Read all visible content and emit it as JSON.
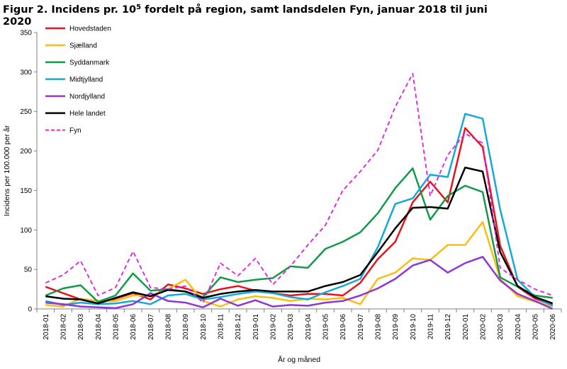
{
  "title": {
    "prefix": "Figur 2. Incidens pr. 10",
    "sup": "5",
    "suffix": " fordelt på region, samt landsdelen Fyn, januar 2018 til juni 2020"
  },
  "chart_data": {
    "type": "line",
    "xlabel": "År og måned",
    "ylabel": "Incidens per 100.000 per år",
    "ylim": [
      0,
      350
    ],
    "yticks": [
      0,
      50,
      100,
      150,
      200,
      250,
      300,
      350
    ],
    "grid": false,
    "legend_position": "top-left",
    "categories": [
      "2018-01",
      "2018-02",
      "2018-03",
      "2018-04",
      "2018-05",
      "2018-06",
      "2018-07",
      "2018-08",
      "2018-09",
      "2018-10",
      "2018-11",
      "2018-12",
      "2019-01",
      "2019-02",
      "2019-03",
      "2019-04",
      "2019-05",
      "2019-06",
      "2019-07",
      "2019-08",
      "2019-09",
      "2019-10",
      "2019-11",
      "2019-12",
      "2020-01",
      "2020-02",
      "2020-03",
      "2020-04",
      "2020-05",
      "2020-06"
    ],
    "series": [
      {
        "name": "Hovedstaden",
        "color": "#e8141b",
        "dash": false,
        "values": [
          28,
          20,
          12,
          7,
          13,
          20,
          12,
          31,
          26,
          19,
          25,
          29,
          23,
          20,
          17,
          19,
          19,
          17,
          33,
          63,
          85,
          135,
          161,
          135,
          229,
          205,
          80,
          28,
          13,
          5
        ]
      },
      {
        "name": "Sjælland",
        "color": "#fbbd13",
        "dash": false,
        "values": [
          5,
          3,
          13,
          10,
          10,
          17,
          17,
          25,
          37,
          10,
          3,
          12,
          16,
          14,
          10,
          13,
          12,
          14,
          6,
          38,
          46,
          64,
          62,
          81,
          81,
          110,
          38,
          16,
          9,
          3
        ]
      },
      {
        "name": "Syddanmark",
        "color": "#139a48",
        "dash": false,
        "values": [
          17,
          26,
          30,
          9,
          17,
          45,
          23,
          25,
          22,
          15,
          40,
          34,
          37,
          39,
          54,
          52,
          76,
          85,
          97,
          121,
          153,
          178,
          113,
          143,
          156,
          148,
          40,
          28,
          17,
          14
        ]
      },
      {
        "name": "Midtjylland",
        "color": "#14a9d8",
        "dash": false,
        "values": [
          10,
          5,
          8,
          6,
          7,
          10,
          6,
          17,
          19,
          12,
          15,
          19,
          22,
          20,
          15,
          12,
          21,
          29,
          38,
          78,
          133,
          140,
          170,
          167,
          247,
          241,
          126,
          37,
          15,
          4
        ]
      },
      {
        "name": "Nordjylland",
        "color": "#8f36d8",
        "dash": false,
        "values": [
          8,
          6,
          3,
          2,
          1,
          6,
          20,
          10,
          8,
          2,
          13,
          4,
          11,
          3,
          5,
          4,
          8,
          10,
          17,
          26,
          38,
          55,
          62,
          46,
          58,
          66,
          36,
          19,
          10,
          0
        ]
      },
      {
        "name": "Hele landet",
        "color": "#000000",
        "dash": false,
        "values": [
          16,
          13,
          12,
          7,
          14,
          21,
          16,
          24,
          22,
          14,
          19,
          22,
          24,
          22,
          22,
          22,
          29,
          34,
          43,
          72,
          102,
          128,
          129,
          127,
          179,
          174,
          72,
          29,
          15,
          7
        ]
      },
      {
        "name": "Fyn",
        "color": "#e81ae1",
        "dash": true,
        "values": [
          33,
          43,
          61,
          17,
          27,
          73,
          27,
          25,
          29,
          8,
          58,
          42,
          64,
          31,
          54,
          81,
          106,
          150,
          174,
          201,
          256,
          298,
          143,
          195,
          222,
          210,
          52,
          37,
          25,
          17
        ]
      }
    ]
  }
}
